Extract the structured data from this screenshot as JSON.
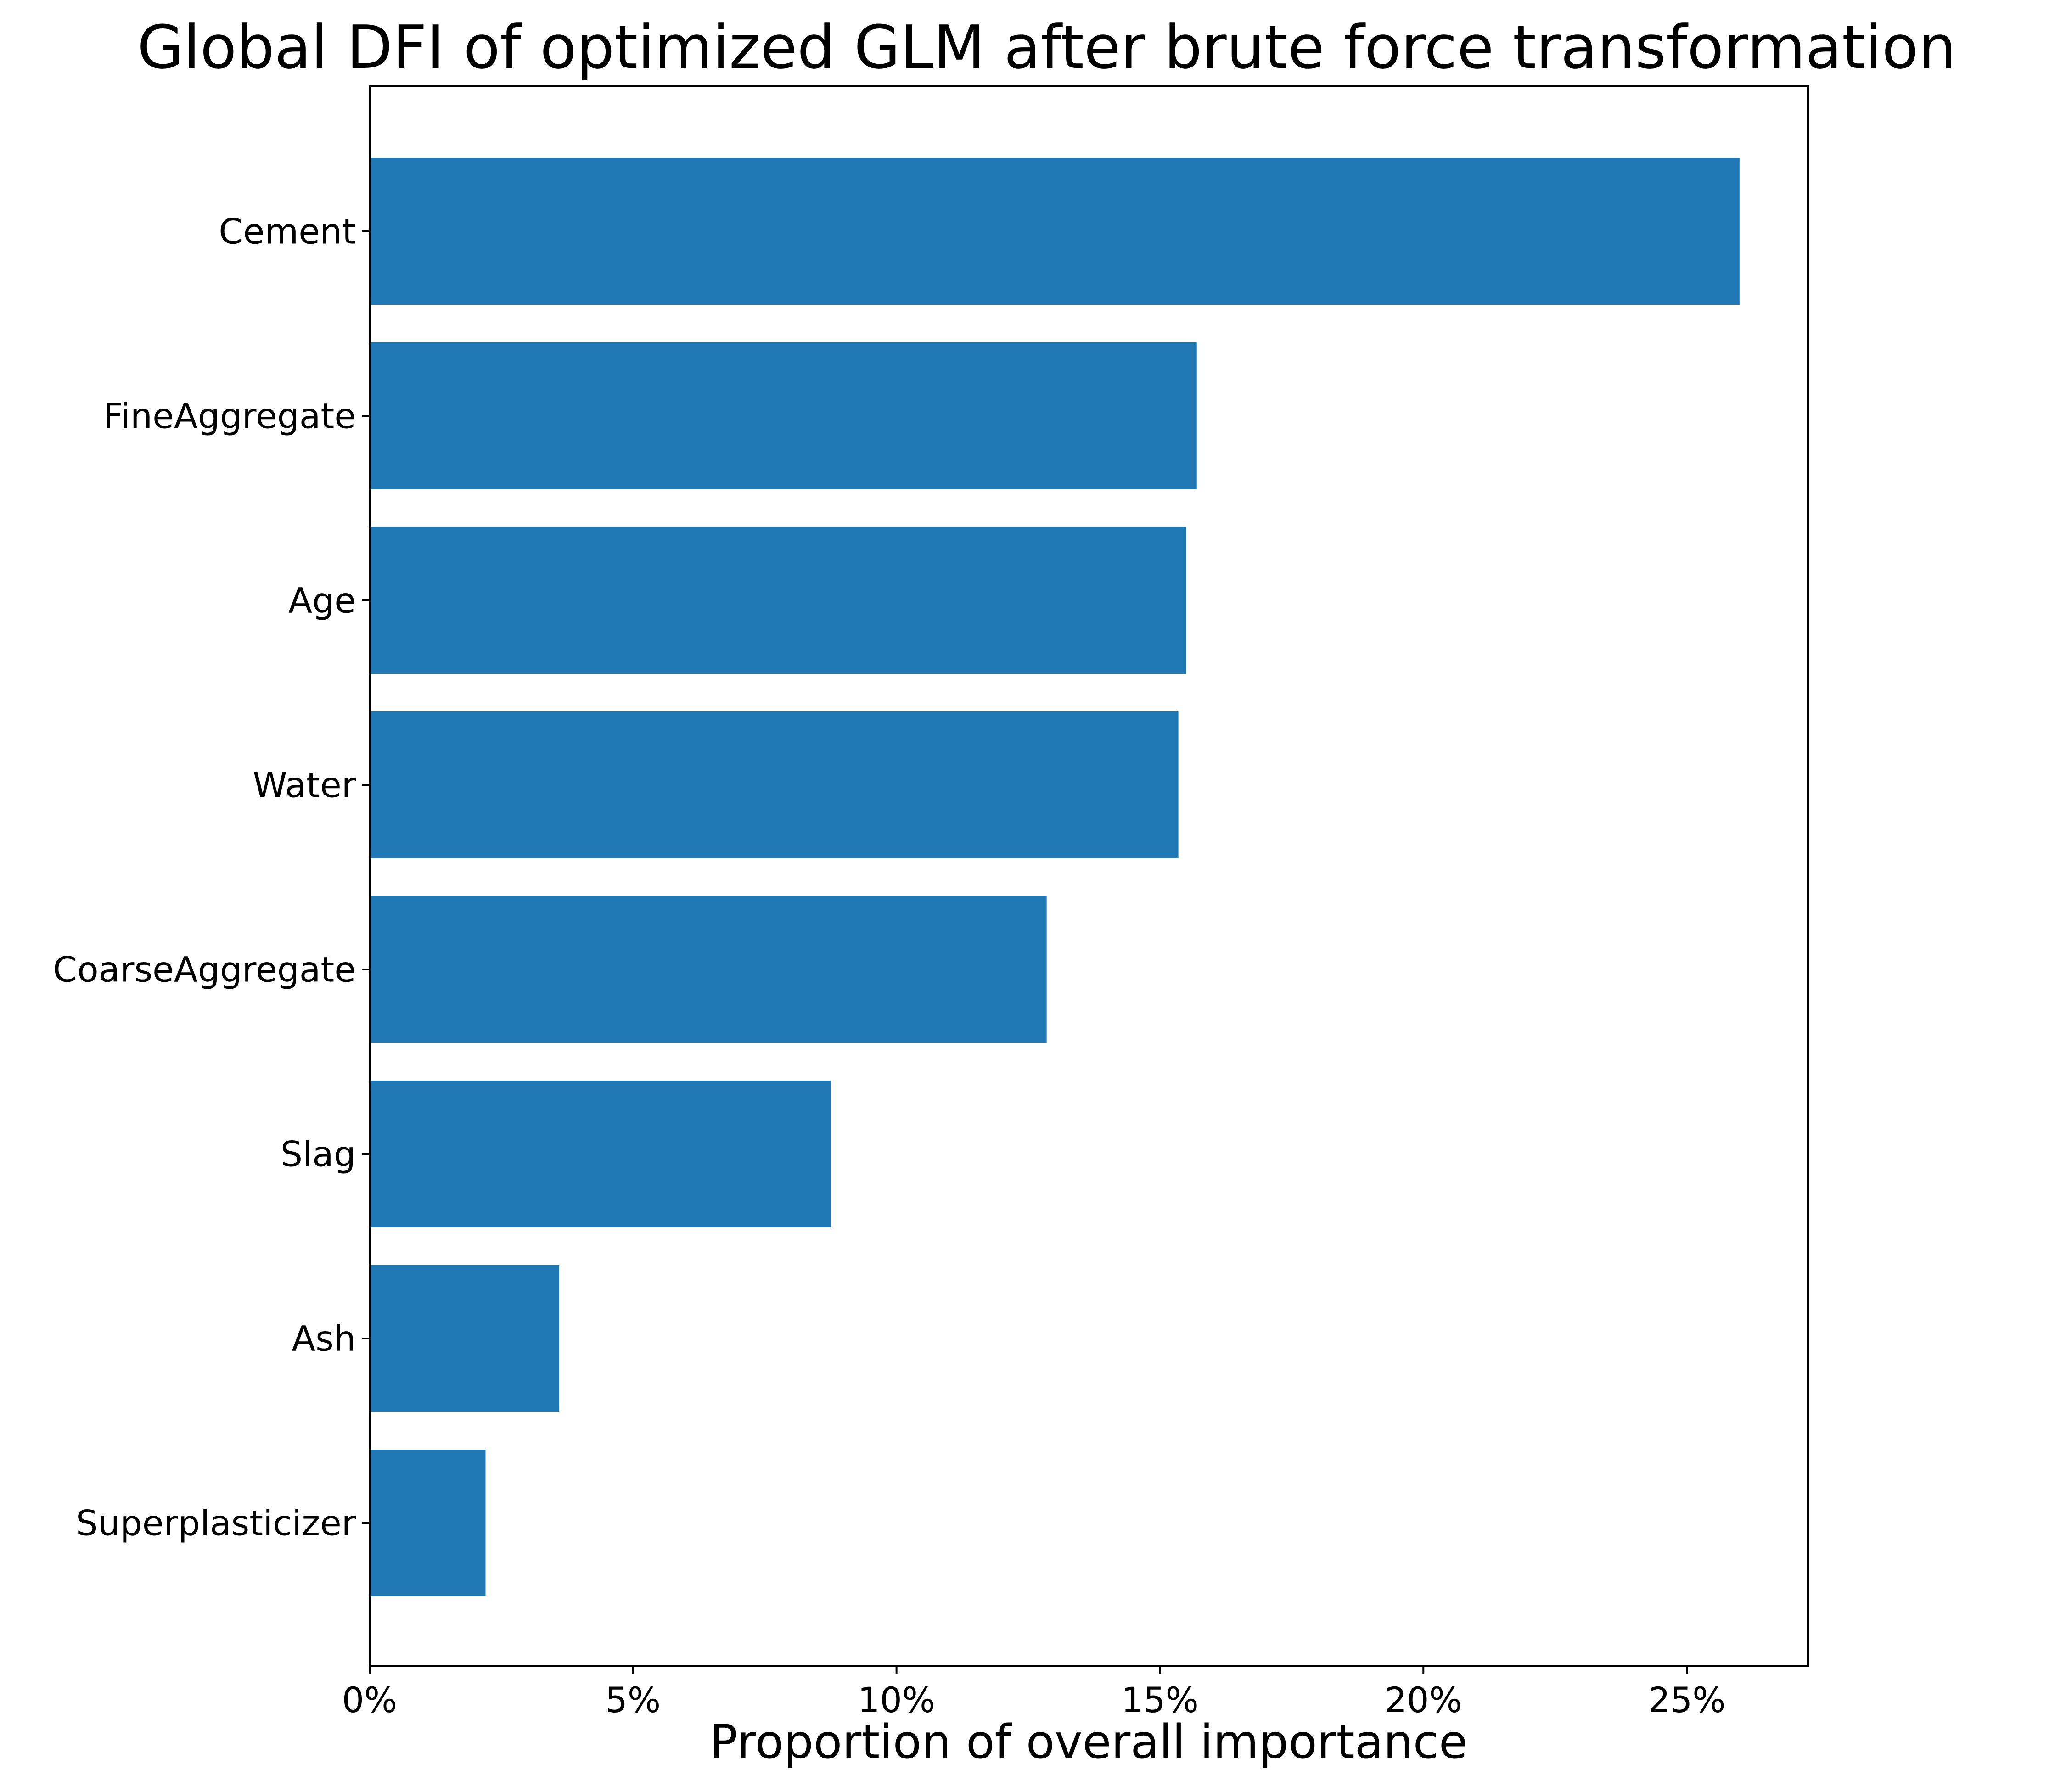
{
  "chart_data": {
    "type": "bar",
    "orientation": "horizontal",
    "title": "Global DFI of optimized GLM after brute force transformation",
    "xlabel": "Proportion of overall importance",
    "ylabel": "",
    "categories": [
      "Cement",
      "FineAggregate",
      "Age",
      "Water",
      "CoarseAggregate",
      "Slag",
      "Ash",
      "Superplasticizer"
    ],
    "values": [
      26.0,
      15.7,
      15.5,
      15.35,
      12.85,
      8.75,
      3.6,
      2.2
    ],
    "xlim": [
      0,
      27.3
    ],
    "xticks": [
      0,
      5,
      10,
      15,
      20,
      25
    ],
    "xtick_labels": [
      "0%",
      "5%",
      "10%",
      "15%",
      "20%",
      "25%"
    ],
    "grid": false,
    "legend": "none",
    "bar_color": "#1f77b4"
  }
}
